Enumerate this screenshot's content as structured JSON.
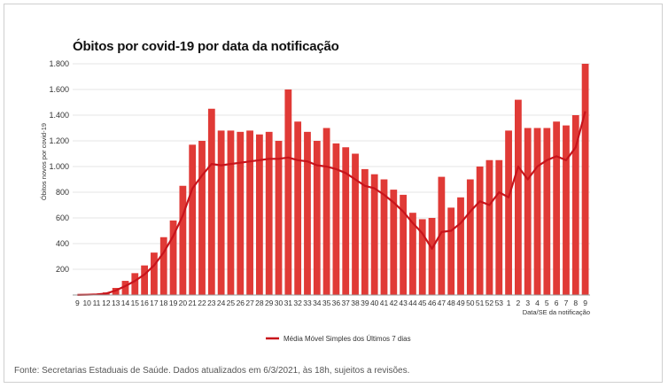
{
  "source_note": "Fonte: Secretarias Estaduais de Saúde. Dados atualizados em 6/3/2021, às 18h, sujeitos a revisões.",
  "colors": {
    "bars": "#e03a36",
    "moving_average": "#c8141b",
    "grid": "#e6e6e6",
    "axis_text": "#333333"
  },
  "chart_data": {
    "type": "bar",
    "title": "Óbitos por covid-19 por data da notificação",
    "ylabel": "Óbitos novos por covid-19",
    "xlabel": "Data/SE da notificação",
    "ylim": [
      0,
      1800
    ],
    "yticks": [
      200,
      400,
      600,
      800,
      1000,
      1200,
      1400,
      1600,
      1800
    ],
    "ytick_labels": [
      "200",
      "400",
      "600",
      "800",
      "1.000",
      "1.200",
      "1.400",
      "1.600",
      "1.800"
    ],
    "grid": true,
    "legend_position": "bottom-center",
    "x_categories": [
      "9",
      "10",
      "11",
      "12",
      "13",
      "14",
      "15",
      "16",
      "17",
      "18",
      "19",
      "20",
      "21",
      "22",
      "23",
      "24",
      "25",
      "26",
      "27",
      "28",
      "29",
      "30",
      "31",
      "32",
      "33",
      "34",
      "35",
      "36",
      "37",
      "38",
      "39",
      "40",
      "41",
      "42",
      "43",
      "44",
      "45",
      "46",
      "47",
      "48",
      "49",
      "50",
      "51",
      "52",
      "53",
      "1",
      "2",
      "3",
      "4",
      "5",
      "6",
      "7",
      "8",
      "9"
    ],
    "series_weekly_peak": {
      "name": "Óbitos novos por covid-19",
      "values": [
        2,
        3,
        8,
        20,
        55,
        110,
        170,
        230,
        330,
        450,
        580,
        850,
        1170,
        1200,
        1450,
        1280,
        1280,
        1270,
        1280,
        1250,
        1270,
        1200,
        1600,
        1350,
        1270,
        1200,
        1300,
        1180,
        1150,
        1100,
        980,
        940,
        900,
        820,
        780,
        640,
        590,
        600,
        920,
        680,
        760,
        900,
        1000,
        1050,
        1050,
        1280,
        1520,
        1300,
        1300,
        1300,
        1350,
        1320,
        1400,
        1800
      ]
    },
    "moving_average": {
      "name": "Média Móvel Simples dos Últimos 7 dias",
      "values": [
        1,
        2,
        5,
        12,
        35,
        70,
        110,
        160,
        230,
        330,
        460,
        620,
        830,
        930,
        1020,
        1010,
        1020,
        1030,
        1040,
        1050,
        1060,
        1060,
        1070,
        1050,
        1040,
        1010,
        1000,
        980,
        950,
        900,
        850,
        830,
        780,
        720,
        650,
        560,
        480,
        360,
        490,
        500,
        560,
        650,
        730,
        700,
        800,
        760,
        1000,
        900,
        1000,
        1050,
        1080,
        1050,
        1150,
        1430
      ]
    }
  }
}
